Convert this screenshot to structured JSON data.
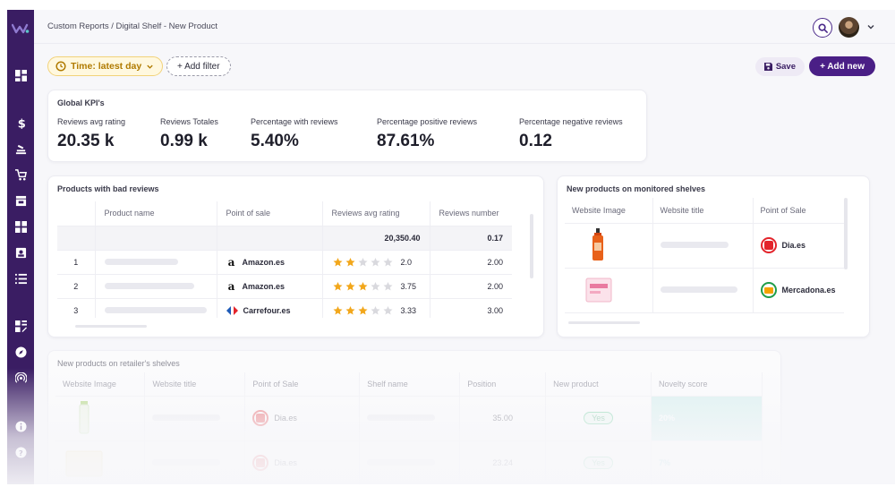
{
  "breadcrumb": "Custom Reports / Digital Shelf - New Product",
  "filters": {
    "time_label": "Time: latest day",
    "add_filter_label": "+ Add filter"
  },
  "actions": {
    "save_label": "Save",
    "add_new_label": "+ Add new"
  },
  "kpis": {
    "title": "Global KPI's",
    "items": [
      {
        "label": "Reviews avg rating",
        "value": "20.35 k"
      },
      {
        "label": "Reviews Totales",
        "value": "0.99 k"
      },
      {
        "label": "Percentage with reviews",
        "value": "5.40%"
      },
      {
        "label": "Percentage positive reviews",
        "value": "87.61%"
      },
      {
        "label": "Percentage negative reviews",
        "value": "0.12"
      }
    ]
  },
  "bad_reviews": {
    "title": "Products with bad reviews",
    "columns": [
      "Product name",
      "Point of sale",
      "Reviews avg rating",
      "Reviews number"
    ],
    "totals": {
      "avg_rating": "20,350.40",
      "number": "0.17"
    },
    "rows": [
      {
        "index": "1",
        "point_of_sale": "Amazon.es",
        "stars": 2,
        "rating": "2.0",
        "number": "2.00"
      },
      {
        "index": "2",
        "point_of_sale": "Amazon.es",
        "stars": 3,
        "rating": "3.75",
        "number": "2.00"
      },
      {
        "index": "3",
        "point_of_sale": "Carrefour.es",
        "stars": 3,
        "rating": "3.33",
        "number": "3.00"
      }
    ]
  },
  "monitored": {
    "title": "New products on monitored shelves",
    "columns": [
      "Website Image",
      "Website title",
      "Point of Sale"
    ],
    "rows": [
      {
        "point_of_sale": "Dia.es"
      },
      {
        "point_of_sale": "Mercadona.es"
      }
    ]
  },
  "retailer": {
    "title": "New products on retailer's shelves",
    "columns": [
      "Website Image",
      "Website title",
      "Point of Sale",
      "Shelf name",
      "Position",
      "New product",
      "Novelty score"
    ],
    "rows": [
      {
        "point_of_sale": "Dia.es",
        "position": "35.00",
        "new_product": "Yes",
        "novelty": "20%"
      },
      {
        "point_of_sale": "Dia.es",
        "position": "23.24",
        "new_product": "Yes",
        "novelty": "7%"
      }
    ]
  },
  "colors": {
    "sidebar": "#3a1d63",
    "accent": "#4a1f86",
    "star": "#f2a71b",
    "time_filter": "#b07a00"
  }
}
